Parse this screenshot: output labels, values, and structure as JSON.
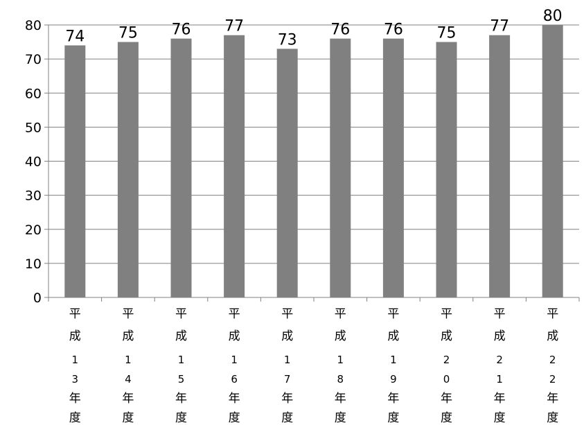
{
  "chart_data": {
    "type": "bar",
    "title": "",
    "xlabel": "",
    "ylabel": "",
    "categories": [
      "平成13年度",
      "平成14年度",
      "平成15年度",
      "平成16年度",
      "平成17年度",
      "平成18年度",
      "平成19年度",
      "平成20年度",
      "平成21年度",
      "平成22年度"
    ],
    "values": [
      74,
      75,
      76,
      77,
      73,
      76,
      76,
      75,
      77,
      80
    ],
    "ylim": [
      0,
      80
    ],
    "yticks": [
      0,
      10,
      20,
      30,
      40,
      50,
      60,
      70,
      80
    ],
    "grid": true,
    "legend": "none",
    "colors": {
      "bar": "#808080",
      "grid": "#808080",
      "axis": "#808080",
      "text": "#000000"
    }
  }
}
